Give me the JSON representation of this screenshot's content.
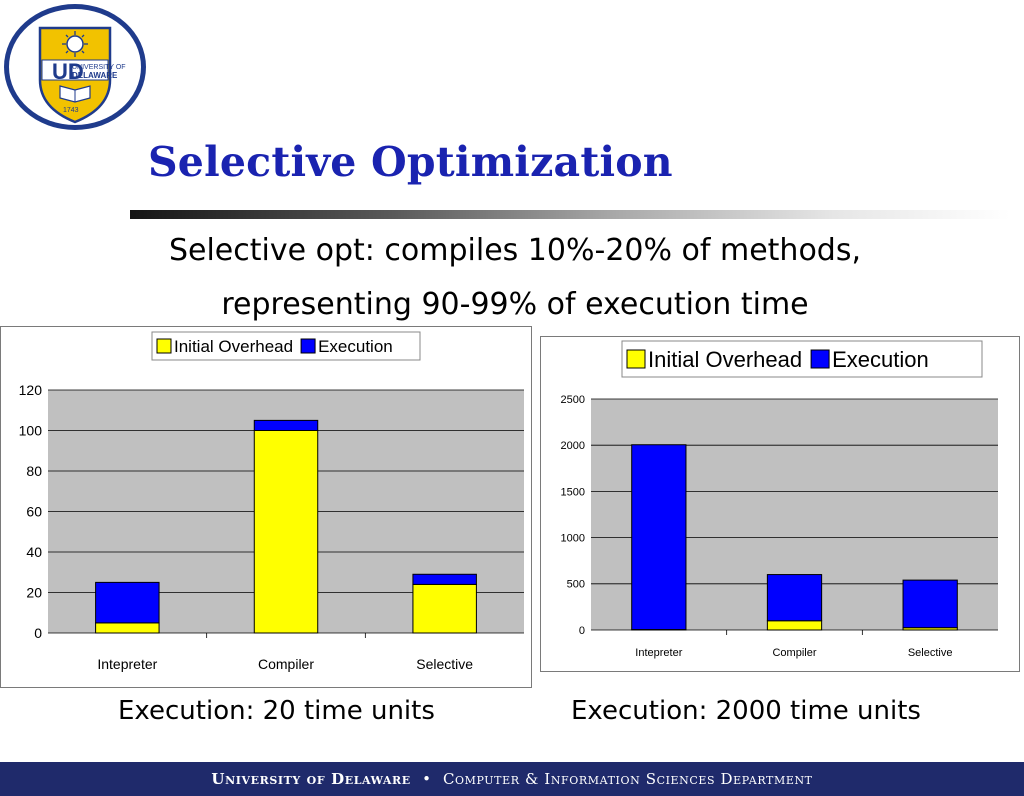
{
  "slide": {
    "title": "Selective Optimization",
    "subtitle_line1": "Selective opt: compiles 10%-20% of methods,",
    "subtitle_line2": "representing 90-99% of execution time",
    "caption_left": "Execution: 20 time units",
    "caption_right": "Execution: 2000 time units"
  },
  "logo": {
    "text_line1": "UNIVERSITY OF",
    "text_line2": "DELAWARE",
    "monogram": "UD",
    "year": "1743",
    "colors": {
      "blue": "#1f3b8c",
      "gold": "#f2c200"
    }
  },
  "footer": {
    "university": "University of Delaware",
    "separator": "•",
    "department": "Computer & Information Sciences Department"
  },
  "colors": {
    "title": "#1a23b0",
    "overhead": "#ffff00",
    "execution": "#0000ff",
    "plot_bg": "#c0c0c0",
    "footer_bg": "#1f2a6b"
  },
  "chart_data": [
    {
      "type": "bar",
      "stacked": true,
      "categories": [
        "Intepreter",
        "Compiler",
        "Selective"
      ],
      "series": [
        {
          "name": "Initial Overhead",
          "values": [
            5,
            100,
            24
          ]
        },
        {
          "name": "Execution",
          "values": [
            20,
            5,
            5
          ]
        }
      ],
      "yticks": [
        0,
        20,
        40,
        60,
        80,
        100,
        120
      ],
      "ylim": [
        0,
        120
      ],
      "grid": true,
      "legend": "top"
    },
    {
      "type": "bar",
      "stacked": true,
      "categories": [
        "Intepreter",
        "Compiler",
        "Selective"
      ],
      "series": [
        {
          "name": "Initial Overhead",
          "values": [
            5,
            100,
            25
          ]
        },
        {
          "name": "Execution",
          "values": [
            2000,
            500,
            515
          ]
        }
      ],
      "yticks": [
        0,
        500,
        1000,
        1500,
        2000,
        2500
      ],
      "ylim": [
        0,
        2500
      ],
      "grid": true,
      "legend": "top"
    }
  ]
}
